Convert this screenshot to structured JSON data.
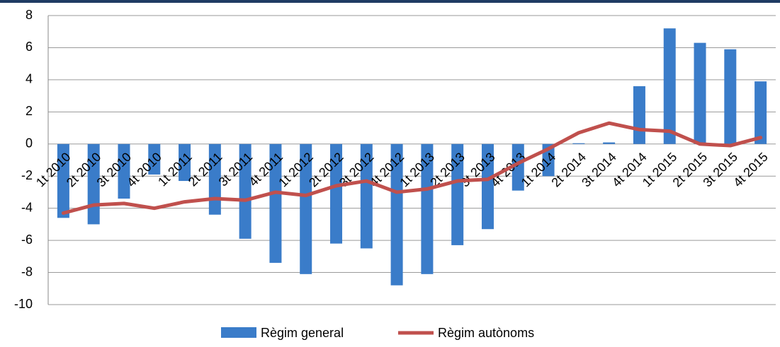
{
  "chart_data": {
    "type": "bar",
    "categories": [
      "1t 2010",
      "2t 2010",
      "3t 2010",
      "4t 2010",
      "1t 2011",
      "2t 2011",
      "3t 2011",
      "4t 2011",
      "1t 2012",
      "2t 2012",
      "3t 2012",
      "4t 2012",
      "1t 2013",
      "2t 2013",
      "3t 2013",
      "4t 2013",
      "1t 2014",
      "2t 2014",
      "3t 2014",
      "4t 2014",
      "1t 2015",
      "2t 2015",
      "3t 2015",
      "4t 2015"
    ],
    "series": [
      {
        "name": "Règim general",
        "type": "bar",
        "color": "#3a7cc9",
        "values": [
          -4.6,
          -5.0,
          -3.4,
          -1.9,
          -2.3,
          -4.4,
          -5.9,
          -7.4,
          -8.1,
          -6.2,
          -6.5,
          -8.8,
          -8.1,
          -6.3,
          -5.3,
          -2.9,
          -2.0,
          0.05,
          0.1,
          3.6,
          7.2,
          6.3,
          5.9,
          3.9
        ]
      },
      {
        "name": "Règim autònoms",
        "type": "line",
        "color": "#c0504d",
        "values": [
          -4.3,
          -3.8,
          -3.7,
          -4.0,
          -3.6,
          -3.4,
          -3.5,
          -3.0,
          -3.2,
          -2.6,
          -2.3,
          -3.0,
          -2.8,
          -2.3,
          -2.2,
          -1.2,
          -0.3,
          0.7,
          1.3,
          0.9,
          0.8,
          0.0,
          -0.1,
          0.4
        ]
      }
    ],
    "ylim": [
      -10,
      8
    ],
    "yticks": [
      -10,
      -8,
      -6,
      -4,
      -2,
      0,
      2,
      4,
      6,
      8
    ],
    "grid": true,
    "legend": "bottom"
  }
}
